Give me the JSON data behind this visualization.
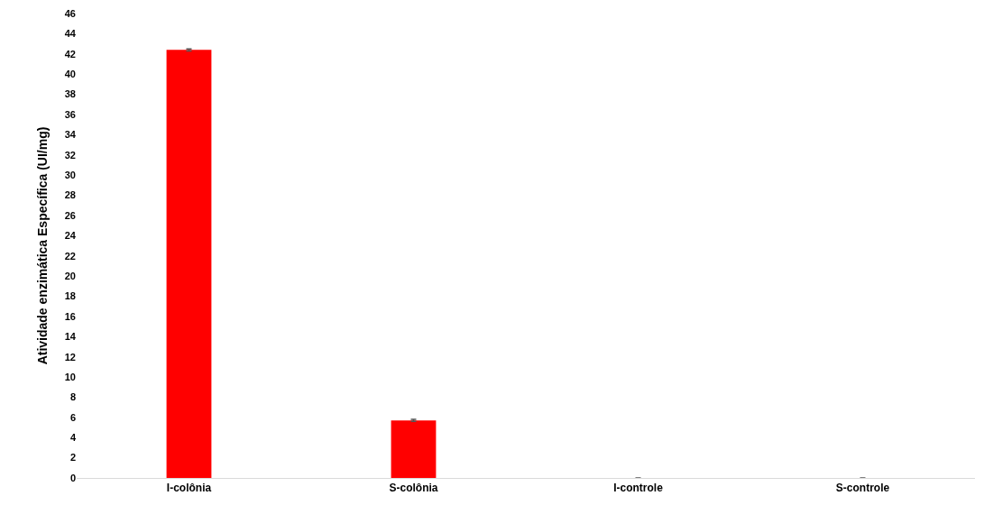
{
  "chart_data": {
    "type": "bar",
    "ylabel": "Atividade enzimática Específica (UI/mg)",
    "categories": [
      "I-colônia",
      "S-colônia",
      "I-controle",
      "S-controle"
    ],
    "values": [
      42.4,
      5.7,
      0,
      0
    ],
    "errors": [
      0.1,
      0.1,
      null,
      null
    ],
    "color": "#ff0000",
    "ylim": [
      0,
      46
    ],
    "yticks": [
      0,
      2,
      4,
      6,
      8,
      10,
      12,
      14,
      16,
      18,
      20,
      22,
      24,
      26,
      28,
      30,
      32,
      34,
      36,
      38,
      40,
      42,
      44,
      46
    ]
  }
}
